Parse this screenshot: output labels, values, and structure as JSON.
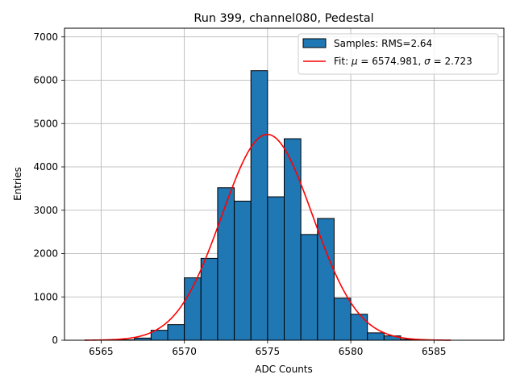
{
  "chart_data": {
    "type": "bar",
    "title": "Run 399, channel080, Pedestal",
    "xlabel": "ADC Counts",
    "ylabel": "Entries",
    "xlim": [
      6562.8,
      6589.2
    ],
    "ylim": [
      0,
      7200
    ],
    "grid": true,
    "legend_position": "top-right",
    "xticks": [
      6565,
      6570,
      6575,
      6580,
      6585
    ],
    "yticks": [
      0,
      1000,
      2000,
      3000,
      4000,
      5000,
      6000,
      7000
    ],
    "histogram": {
      "name": "Samples: RMS=2.64",
      "color": "#1f77b4",
      "edge_color": "#000000",
      "bin_width": 1,
      "bins": [
        {
          "x0": 6566,
          "count": 10
        },
        {
          "x0": 6567,
          "count": 50
        },
        {
          "x0": 6568,
          "count": 230
        },
        {
          "x0": 6569,
          "count": 360
        },
        {
          "x0": 6570,
          "count": 1440
        },
        {
          "x0": 6571,
          "count": 1890
        },
        {
          "x0": 6572,
          "count": 3520
        },
        {
          "x0": 6573,
          "count": 3210
        },
        {
          "x0": 6574,
          "count": 6220
        },
        {
          "x0": 6575,
          "count": 3310
        },
        {
          "x0": 6576,
          "count": 4650
        },
        {
          "x0": 6577,
          "count": 2440
        },
        {
          "x0": 6578,
          "count": 2810
        },
        {
          "x0": 6579,
          "count": 970
        },
        {
          "x0": 6580,
          "count": 600
        },
        {
          "x0": 6581,
          "count": 170
        },
        {
          "x0": 6582,
          "count": 100
        },
        {
          "x0": 6583,
          "count": 20
        },
        {
          "x0": 6584,
          "count": 5
        }
      ]
    },
    "fit": {
      "type": "gaussian",
      "color": "#ff0000",
      "mu": 6574.981,
      "sigma": 2.723,
      "amplitude": 4750,
      "x_range": [
        6564,
        6586
      ],
      "legend_prefix": "Fit: ",
      "legend_mu_symbol": "μ",
      "legend_mu_value": " = 6574.981, ",
      "legend_sigma_symbol": "σ",
      "legend_sigma_value": " = 2.723"
    }
  }
}
